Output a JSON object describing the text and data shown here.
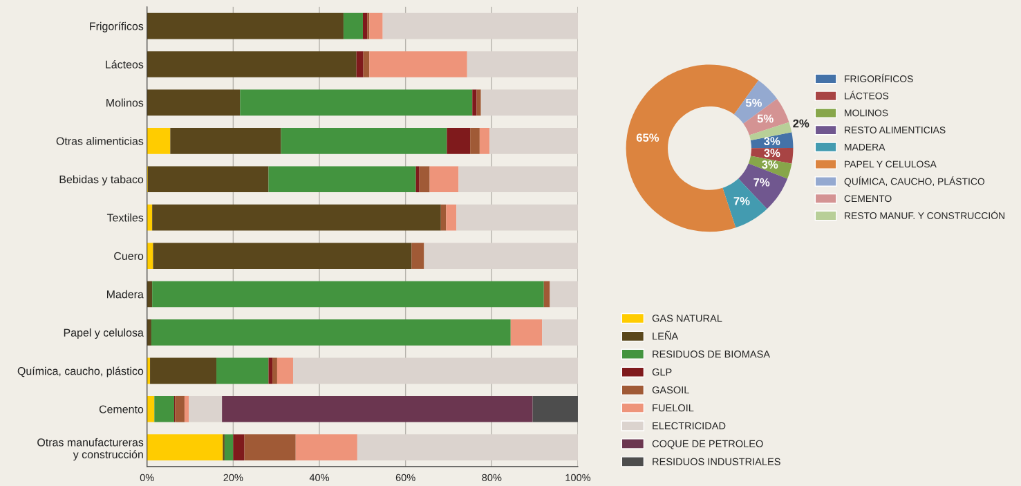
{
  "chart_data": [
    {
      "type": "bar",
      "orientation": "horizontal",
      "stacked": true,
      "categories": [
        "Frigoríficos",
        "Lácteos",
        "Molinos",
        "Otras alimenticias",
        "Bebidas y tabaco",
        "Textiles",
        "Cuero",
        "Madera",
        "Papel y celulosa",
        "Química, caucho, plástico",
        "Cemento",
        "Otras manufactureras\ny construcción"
      ],
      "series": [
        {
          "name": "GAS NATURAL",
          "color": "#ffcc00",
          "values": [
            0,
            0,
            0,
            5.4,
            0.2,
            1.2,
            1.4,
            0,
            0,
            0.7,
            1.7,
            17.6
          ]
        },
        {
          "name": "LEÑA",
          "color": "#5a471c",
          "values": [
            45.6,
            48.6,
            21.6,
            25.7,
            28.0,
            67.0,
            60.0,
            1.2,
            1.0,
            15.4,
            0,
            0.4
          ]
        },
        {
          "name": "RESIDUOS DE BIOMASA",
          "color": "#43943f",
          "values": [
            4.5,
            0,
            53.9,
            38.5,
            34.2,
            0,
            0,
            90.9,
            83.4,
            12.1,
            4.6,
            2.0
          ]
        },
        {
          "name": "GLP",
          "color": "#7f1a1c",
          "values": [
            1.0,
            1.6,
            1.0,
            5.4,
            0.8,
            0,
            0,
            0,
            0,
            0.9,
            0.2,
            2.6
          ]
        },
        {
          "name": "GASOIL",
          "color": "#a05a36",
          "values": [
            0.5,
            1.4,
            1.0,
            2.2,
            2.4,
            1.2,
            2.9,
            1.4,
            0,
            1.1,
            2.2,
            11.9
          ]
        },
        {
          "name": "FUELOIL",
          "color": "#ee947a",
          "values": [
            3.1,
            22.7,
            0,
            2.3,
            6.7,
            2.4,
            0,
            0,
            7.3,
            3.7,
            1.0,
            14.3
          ]
        },
        {
          "name": "ELECTRICIDAD",
          "color": "#dbd3ce",
          "values": [
            45.3,
            25.7,
            22.5,
            20.5,
            27.7,
            28.2,
            35.7,
            6.5,
            8.3,
            66.1,
            7.7,
            51.2
          ]
        },
        {
          "name": "COQUE DE PETROLEO",
          "color": "#6b3650",
          "values": [
            0,
            0,
            0,
            0,
            0,
            0,
            0,
            0,
            0,
            0,
            72.1,
            0
          ]
        },
        {
          "name": "RESIDUOS INDUSTRIALES",
          "color": "#4d4d4d",
          "values": [
            0,
            0,
            0,
            0,
            0,
            0,
            0,
            0,
            0,
            0,
            10.5,
            0
          ]
        }
      ],
      "xlim": [
        0,
        100
      ],
      "xticks": [
        {
          "value": 0,
          "label": "0%"
        },
        {
          "value": 20,
          "label": "20%"
        },
        {
          "value": 40,
          "label": "40%"
        },
        {
          "value": 60,
          "label": "60%"
        },
        {
          "value": 80,
          "label": "80%"
        },
        {
          "value": 100,
          "label": "100%"
        }
      ],
      "grid": "x",
      "legend": "right"
    },
    {
      "type": "donut",
      "categories": [
        "FRIGORÍFICOS",
        "LÁCTEOS",
        "MOLINOS",
        "RESTO ALIMENTICIAS",
        "MADERA",
        "PAPEL Y CELULOSA",
        "QUÍMICA, CAUCHO, PLÁSTICO",
        "CEMENTO",
        "RESTO MANUF. Y CONSTRUCCIÓN"
      ],
      "values": [
        3,
        3,
        3,
        7,
        7,
        65,
        5,
        5,
        2
      ],
      "value_labels": [
        "3%",
        "3%",
        "3%",
        "7%",
        "7%",
        "65%",
        "5%",
        "5%",
        "2%"
      ],
      "colors": [
        "#4472a8",
        "#a84444",
        "#87a64a",
        "#70578f",
        "#439bb0",
        "#dc843f",
        "#94a9d0",
        "#d49393",
        "#b8cf98"
      ],
      "legend": "right"
    }
  ]
}
